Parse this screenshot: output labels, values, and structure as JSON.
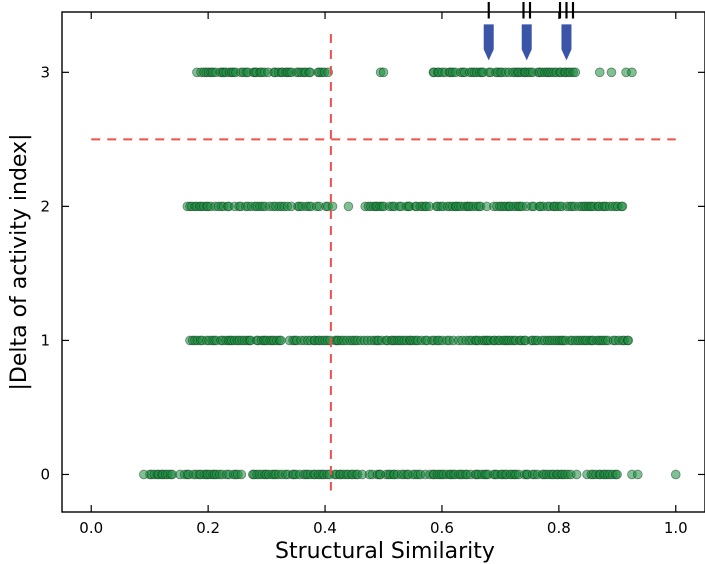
{
  "chart_data": {
    "type": "scatter",
    "xlabel": "Structural Similarity",
    "ylabel": "|Delta of activity index|",
    "xlim": [
      -0.05,
      1.05
    ],
    "ylim": [
      -0.28,
      3.45
    ],
    "x_ticks": [
      0.0,
      0.2,
      0.4,
      0.6,
      0.8,
      1.0
    ],
    "x_tick_labels": [
      "0.0",
      "0.2",
      "0.4",
      "0.6",
      "0.8",
      "1.0"
    ],
    "y_ticks": [
      0,
      1,
      2,
      3
    ],
    "y_tick_labels": [
      "0",
      "1",
      "2",
      "3"
    ],
    "grid": false,
    "point_color": "#1a8a3c",
    "reference_line_color": "#f0504a",
    "reference_lines": [
      {
        "orientation": "vertical",
        "x": 0.41
      },
      {
        "orientation": "horizontal",
        "y": 2.5
      }
    ],
    "marker_color": "#3a55a8",
    "markers": [
      {
        "label": "I",
        "x": 0.68,
        "y": 3
      },
      {
        "label": "II",
        "x": 0.745,
        "y": 3
      },
      {
        "label": "III",
        "x": 0.813,
        "y": 3
      }
    ],
    "series": [
      {
        "y": 0,
        "x_ranges": [
          [
            0.1,
            0.9
          ]
        ],
        "x_extra": [
          0.09,
          0.925,
          0.935,
          1.0
        ]
      },
      {
        "y": 1,
        "x_ranges": [
          [
            0.17,
            0.33
          ],
          [
            0.34,
            0.92
          ]
        ],
        "x_extra": []
      },
      {
        "y": 2,
        "x_ranges": [
          [
            0.165,
            0.42
          ],
          [
            0.47,
            0.91
          ]
        ],
        "x_extra": [
          0.44
        ]
      },
      {
        "y": 3,
        "x_ranges": [
          [
            0.18,
            0.41
          ],
          [
            0.58,
            0.83
          ]
        ],
        "x_extra": [
          0.495,
          0.5,
          0.87,
          0.89,
          0.915,
          0.925
        ]
      }
    ]
  }
}
